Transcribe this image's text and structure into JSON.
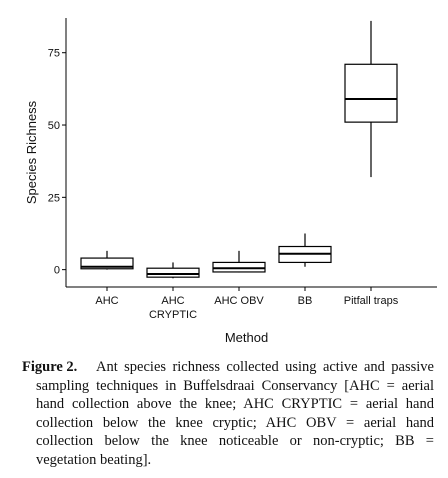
{
  "caption": {
    "label": "Figure 2.",
    "text": "Ant species richness collected using active and passive sampling techniques in Buffelsdraai Conservancy [AHC = aerial hand collection above the knee; AHC CRYPTIC = aerial hand collection below the knee cryptic; AHC OBV = aerial hand collection below the knee noticeable or non-cryptic; BB = vegetation beating]."
  },
  "chart_data": {
    "type": "box",
    "title": "",
    "xlabel": "Method",
    "ylabel": "Species Richness",
    "ylim": [
      -6,
      87
    ],
    "yticks": [
      0,
      25,
      50,
      75
    ],
    "grid": false,
    "colors": {
      "box_fill": "#ffffff",
      "stroke": "#000000"
    },
    "categories": [
      {
        "label": [
          "AHC"
        ],
        "whisker_low": 0,
        "q1": 0.3,
        "median": 1,
        "q3": 4,
        "whisker_high": 6.5
      },
      {
        "label": [
          "AHC",
          "CRYPTIC"
        ],
        "whisker_low": -3,
        "q1": -2.6,
        "median": -1.5,
        "q3": 0.5,
        "whisker_high": 2.5
      },
      {
        "label": [
          "AHC OBV"
        ],
        "whisker_low": -1,
        "q1": -0.8,
        "median": 0.5,
        "q3": 2.5,
        "whisker_high": 6.5
      },
      {
        "label": [
          "BB"
        ],
        "whisker_low": 1,
        "q1": 2.5,
        "median": 5.5,
        "q3": 8,
        "whisker_high": 12.5
      },
      {
        "label": [
          "Pitfall traps"
        ],
        "whisker_low": 32,
        "q1": 51,
        "median": 59,
        "q3": 71,
        "whisker_high": 86
      }
    ]
  }
}
